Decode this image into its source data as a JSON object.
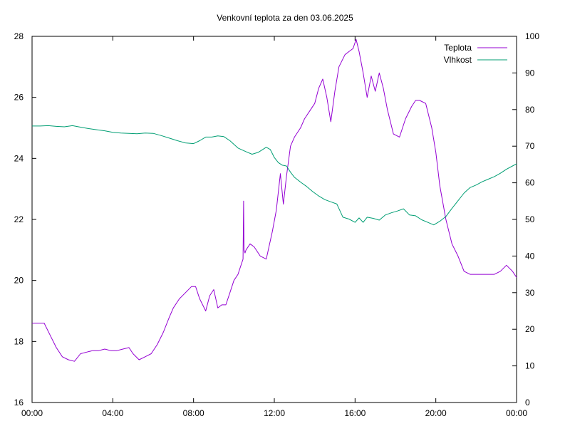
{
  "chart_data": {
    "type": "line",
    "title": "Venkovní teplota za den 03.06.2025",
    "xlabel": "",
    "ylabel": "",
    "y2label": "",
    "x_unit": "hours",
    "xlim": [
      0,
      24
    ],
    "ylim": [
      16,
      28
    ],
    "y2lim": [
      0,
      100
    ],
    "x_tick_values": [
      0,
      4,
      8,
      12,
      16,
      20,
      24
    ],
    "x_tick_labels": [
      "00:00",
      "04:00",
      "08:00",
      "12:00",
      "16:00",
      "20:00",
      "00:00"
    ],
    "y_ticks": [
      16,
      18,
      20,
      22,
      24,
      26,
      28
    ],
    "y2_ticks": [
      0,
      10,
      20,
      30,
      40,
      50,
      60,
      70,
      80,
      90,
      100
    ],
    "grid": false,
    "legend_position": "top-right",
    "series": [
      {
        "name": "Teplota",
        "axis": "y",
        "color": "#9400d3",
        "x": [
          0,
          0.3,
          0.6,
          0.9,
          1.2,
          1.5,
          1.8,
          2.1,
          2.4,
          2.7,
          3.0,
          3.3,
          3.6,
          3.9,
          4.2,
          4.5,
          4.8,
          5.0,
          5.3,
          5.6,
          5.9,
          6.2,
          6.5,
          6.8,
          7.0,
          7.3,
          7.6,
          7.9,
          8.1,
          8.3,
          8.6,
          8.8,
          9.0,
          9.2,
          9.4,
          9.6,
          9.8,
          10.0,
          10.2,
          10.45,
          10.48,
          10.5,
          10.55,
          10.6,
          10.8,
          11.0,
          11.3,
          11.6,
          11.9,
          12.1,
          12.3,
          12.45,
          12.6,
          12.8,
          13.0,
          13.3,
          13.5,
          13.8,
          14.0,
          14.2,
          14.4,
          14.6,
          14.8,
          15.0,
          15.2,
          15.5,
          15.7,
          15.9,
          16.05,
          16.2,
          16.4,
          16.6,
          16.8,
          17.0,
          17.2,
          17.4,
          17.6,
          17.9,
          18.2,
          18.5,
          18.8,
          19.0,
          19.2,
          19.5,
          19.8,
          20.0,
          20.2,
          20.5,
          20.8,
          21.1,
          21.4,
          21.7,
          22.0,
          22.3,
          22.6,
          22.9,
          23.2,
          23.5,
          23.8,
          24.0
        ],
        "values": [
          18.6,
          18.6,
          18.6,
          18.2,
          17.8,
          17.5,
          17.4,
          17.35,
          17.6,
          17.65,
          17.7,
          17.7,
          17.75,
          17.7,
          17.7,
          17.75,
          17.8,
          17.6,
          17.4,
          17.5,
          17.6,
          17.9,
          18.3,
          18.8,
          19.1,
          19.4,
          19.6,
          19.8,
          19.8,
          19.4,
          19.0,
          19.5,
          19.7,
          19.1,
          19.2,
          19.2,
          19.6,
          20.0,
          20.2,
          20.7,
          22.6,
          21.0,
          20.9,
          21.0,
          21.2,
          21.1,
          20.8,
          20.7,
          21.6,
          22.3,
          23.5,
          22.5,
          23.4,
          24.4,
          24.7,
          25.0,
          25.3,
          25.6,
          25.8,
          26.3,
          26.6,
          26.0,
          25.2,
          26.2,
          27.0,
          27.4,
          27.5,
          27.6,
          27.9,
          27.5,
          26.8,
          26.0,
          26.7,
          26.2,
          26.8,
          26.3,
          25.6,
          24.8,
          24.7,
          25.3,
          25.7,
          25.9,
          25.9,
          25.8,
          25.0,
          24.2,
          23.1,
          22.0,
          21.2,
          20.8,
          20.3,
          20.2,
          20.2,
          20.2,
          20.2,
          20.2,
          20.3,
          20.5,
          20.3,
          20.1
        ]
      },
      {
        "name": "Vlhkost",
        "axis": "y2",
        "color": "#009e73",
        "x": [
          0,
          0.4,
          0.8,
          1.2,
          1.6,
          2.0,
          2.4,
          2.8,
          3.2,
          3.6,
          4.0,
          4.4,
          4.8,
          5.2,
          5.6,
          6.0,
          6.4,
          6.8,
          7.2,
          7.6,
          8.0,
          8.3,
          8.6,
          8.9,
          9.2,
          9.5,
          9.8,
          10.2,
          10.6,
          10.9,
          11.2,
          11.6,
          11.8,
          12.0,
          12.2,
          12.4,
          12.6,
          12.8,
          13.0,
          13.3,
          13.6,
          13.9,
          14.2,
          14.5,
          14.8,
          15.1,
          15.4,
          15.7,
          16.0,
          16.2,
          16.4,
          16.6,
          16.9,
          17.2,
          17.5,
          17.8,
          18.1,
          18.4,
          18.7,
          19.0,
          19.3,
          19.6,
          19.9,
          20.2,
          20.5,
          20.8,
          21.1,
          21.4,
          21.7,
          22.0,
          22.3,
          22.6,
          22.9,
          23.2,
          23.5,
          23.8,
          24.0
        ],
        "values": [
          75.5,
          75.5,
          75.6,
          75.4,
          75.3,
          75.6,
          75.2,
          74.8,
          74.5,
          74.2,
          73.8,
          73.6,
          73.5,
          73.4,
          73.6,
          73.5,
          72.9,
          72.2,
          71.5,
          70.9,
          70.7,
          71.5,
          72.5,
          72.5,
          72.8,
          72.6,
          71.5,
          69.5,
          68.5,
          67.8,
          68.3,
          69.7,
          69.1,
          66.9,
          65.5,
          64.8,
          64.6,
          62.9,
          61.5,
          60.2,
          59.0,
          57.6,
          56.4,
          55.4,
          54.8,
          54.2,
          50.6,
          50.1,
          49.2,
          50.4,
          49.2,
          50.6,
          50.3,
          49.8,
          51.2,
          51.8,
          52.3,
          52.9,
          51.2,
          51.0,
          49.9,
          49.2,
          48.5,
          49.5,
          50.8,
          53.0,
          55.1,
          57.2,
          58.7,
          59.4,
          60.3,
          61.0,
          61.7,
          62.6,
          63.7,
          64.6,
          65.2
        ]
      }
    ]
  }
}
